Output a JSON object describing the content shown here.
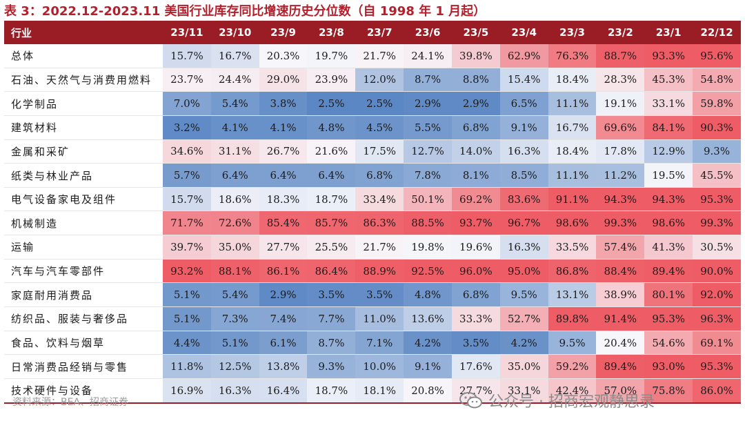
{
  "title": "表 3：2022.12-2023.11 美国行业库存同比增速历史分位数（自 1998 年 1 月起）",
  "source": "资料来源：BEA、招商证券",
  "watermark": "公众号 · 招商宏观静思录",
  "colors": {
    "header_bg": "#9a1c25",
    "title": "#b3202c",
    "low": "#5b87c4",
    "mid": "#f7f7fb",
    "high": "#ee5d66"
  },
  "chart_data": {
    "type": "heatmap",
    "title": "表 3：2022.12-2023.11 美国行业库存同比增速历史分位数（自 1998 年 1 月起）",
    "row_header": "行业",
    "columns": [
      "23/11",
      "23/10",
      "23/9",
      "23/8",
      "23/7",
      "23/6",
      "23/5",
      "23/4",
      "23/3",
      "23/2",
      "23/1",
      "22/12"
    ],
    "rows": [
      {
        "name": "总体",
        "values": [
          "15.7%",
          "16.7%",
          "20.3%",
          "19.7%",
          "21.7%",
          "24.1%",
          "39.8%",
          "62.9%",
          "76.3%",
          "88.7%",
          "93.3%",
          "95.6%"
        ]
      },
      {
        "name": "石油、天然气与消费用燃料",
        "values": [
          "23.7%",
          "24.4%",
          "29.0%",
          "23.9%",
          "12.0%",
          "8.7%",
          "8.8%",
          "15.4%",
          "18.4%",
          "28.3%",
          "45.3%",
          "54.8%"
        ]
      },
      {
        "name": "化学制品",
        "values": [
          "7.0%",
          "5.4%",
          "3.8%",
          "2.5%",
          "2.5%",
          "2.9%",
          "2.9%",
          "6.5%",
          "11.1%",
          "19.1%",
          "33.1%",
          "59.8%"
        ]
      },
      {
        "name": "建筑材料",
        "values": [
          "3.2%",
          "4.1%",
          "4.1%",
          "4.8%",
          "4.5%",
          "5.5%",
          "6.8%",
          "9.1%",
          "16.7%",
          "69.6%",
          "84.1%",
          "90.3%"
        ]
      },
      {
        "name": "金属和采矿",
        "values": [
          "34.6%",
          "31.1%",
          "26.7%",
          "21.6%",
          "17.5%",
          "12.7%",
          "14.0%",
          "16.3%",
          "18.4%",
          "17.8%",
          "12.9%",
          "9.3%"
        ]
      },
      {
        "name": "纸类与林业产品",
        "values": [
          "5.7%",
          "6.4%",
          "6.4%",
          "6.4%",
          "6.8%",
          "7.8%",
          "8.1%",
          "8.5%",
          "11.1%",
          "11.2%",
          "19.5%",
          "45.5%"
        ]
      },
      {
        "name": "电气设备家电及组件",
        "values": [
          "15.7%",
          "18.6%",
          "18.3%",
          "18.7%",
          "33.4%",
          "50.1%",
          "69.2%",
          "83.6%",
          "91.1%",
          "94.3%",
          "94.3%",
          "95.3%"
        ]
      },
      {
        "name": "机械制造",
        "values": [
          "71.7%",
          "72.6%",
          "85.4%",
          "85.7%",
          "86.3%",
          "88.5%",
          "93.7%",
          "96.7%",
          "98.6%",
          "99.3%",
          "98.6%",
          "99.3%"
        ]
      },
      {
        "name": "运输",
        "values": [
          "39.7%",
          "35.0%",
          "27.7%",
          "25.5%",
          "21.7%",
          "19.8%",
          "19.6%",
          "16.3%",
          "33.5%",
          "57.4%",
          "41.3%",
          "30.5%"
        ]
      },
      {
        "name": "汽车与汽车零部件",
        "values": [
          "93.2%",
          "88.1%",
          "86.1%",
          "86.4%",
          "88.9%",
          "92.5%",
          "96.0%",
          "95.0%",
          "86.8%",
          "88.4%",
          "89.4%",
          "90.0%"
        ]
      },
      {
        "name": "家庭耐用消费品",
        "values": [
          "5.1%",
          "5.4%",
          "2.9%",
          "3.5%",
          "3.5%",
          "4.8%",
          "6.8%",
          "9.5%",
          "13.1%",
          "38.9%",
          "80.1%",
          "92.0%"
        ]
      },
      {
        "name": "纺织品、服装与奢侈品",
        "values": [
          "5.1%",
          "7.3%",
          "7.4%",
          "7.7%",
          "11.0%",
          "13.6%",
          "33.3%",
          "52.7%",
          "89.8%",
          "91.4%",
          "95.3%",
          "96.3%"
        ]
      },
      {
        "name": "食品、饮料与烟草",
        "values": [
          "4.4%",
          "5.1%",
          "6.1%",
          "8.7%",
          "7.1%",
          "4.2%",
          "3.5%",
          "4.2%",
          "9.5%",
          "20.4%",
          "54.6%",
          "69.1%"
        ]
      },
      {
        "name": "日常消费品经销与零售",
        "values": [
          "11.8%",
          "12.5%",
          "13.8%",
          "9.3%",
          "10.0%",
          "9.1%",
          "17.6%",
          "35.0%",
          "59.2%",
          "89.4%",
          "93.0%",
          "95.3%"
        ]
      },
      {
        "name": "技术硬件与设备",
        "values": [
          "16.9%",
          "16.3%",
          "16.4%",
          "18.7%",
          "18.1%",
          "20.8%",
          "27.7%",
          "33.1%",
          "42.4%",
          "57.0%",
          "75.8%",
          "86.0%"
        ]
      }
    ]
  }
}
